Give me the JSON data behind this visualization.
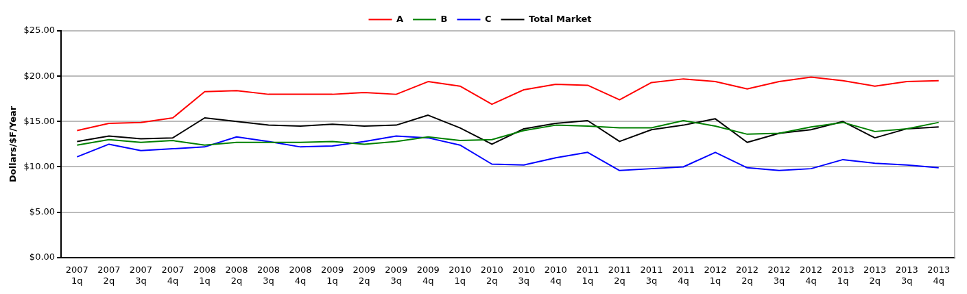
{
  "chart_data": {
    "type": "line",
    "ylabel": "Dollars/$F/Year",
    "categories": [
      "2007 1q",
      "2007 2q",
      "2007 3q",
      "2007 4q",
      "2008 1q",
      "2008 2q",
      "2008 3q",
      "2008 4q",
      "2009 1q",
      "2009 2q",
      "2009 3q",
      "2009 4q",
      "2010 1q",
      "2010 2q",
      "2010 3q",
      "2010 4q",
      "2011 1q",
      "2011 2q",
      "2011 3q",
      "2011 4q",
      "2012 1q",
      "2012 2q",
      "2012 3q",
      "2012 4q",
      "2013 1q",
      "2013 2q",
      "2013 3q",
      "2013 4q"
    ],
    "series": [
      {
        "name": "A",
        "color": "#ff0000",
        "values": [
          14.0,
          14.8,
          14.9,
          15.4,
          18.3,
          18.4,
          18.0,
          18.0,
          18.0,
          18.2,
          18.0,
          19.4,
          18.9,
          16.9,
          18.5,
          19.1,
          19.0,
          17.4,
          19.3,
          19.7,
          19.4,
          18.6,
          19.4,
          19.9,
          19.5,
          18.9,
          19.4,
          19.5
        ]
      },
      {
        "name": "B",
        "color": "#008000",
        "values": [
          12.4,
          13.0,
          12.7,
          12.9,
          12.4,
          12.7,
          12.7,
          12.7,
          12.8,
          12.5,
          12.8,
          13.3,
          12.9,
          13.0,
          14.0,
          14.6,
          14.5,
          14.3,
          14.3,
          15.1,
          14.5,
          13.6,
          13.7,
          14.4,
          14.9,
          13.9,
          14.2,
          14.9
        ]
      },
      {
        "name": "C",
        "color": "#0000ff",
        "values": [
          11.1,
          12.5,
          11.8,
          12.0,
          12.2,
          13.3,
          12.8,
          12.2,
          12.3,
          12.8,
          13.4,
          13.2,
          12.4,
          10.3,
          10.2,
          11.0,
          11.6,
          9.6,
          9.8,
          10.0,
          11.6,
          9.9,
          9.6,
          9.8,
          10.8,
          10.4,
          10.2,
          9.9
        ]
      },
      {
        "name": "Total Market",
        "color": "#000000",
        "values": [
          12.8,
          13.4,
          13.1,
          13.2,
          15.4,
          15.0,
          14.6,
          14.5,
          14.7,
          14.5,
          14.6,
          15.7,
          14.3,
          12.5,
          14.2,
          14.8,
          15.1,
          12.8,
          14.1,
          14.6,
          15.3,
          12.7,
          13.7,
          14.1,
          15.0,
          13.2,
          14.2,
          14.4
        ]
      }
    ],
    "ylim": [
      0,
      25
    ],
    "yticks": [
      {
        "value": 0,
        "label": "$0.00"
      },
      {
        "value": 5,
        "label": "$5.00"
      },
      {
        "value": 10,
        "label": "$10.00"
      },
      {
        "value": 15,
        "label": "$15.00"
      },
      {
        "value": 20,
        "label": "$20.00"
      },
      {
        "value": 25,
        "label": "$25.00"
      }
    ],
    "grid": "y",
    "legend": "top",
    "marker": "none",
    "line_style": "solid"
  }
}
